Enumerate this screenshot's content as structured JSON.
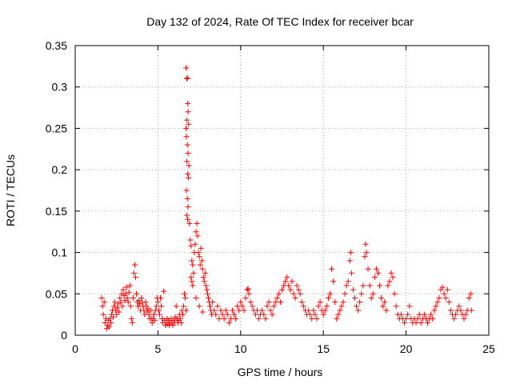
{
  "chart_data": {
    "type": "scatter",
    "title": "Day 132 of 2024, Rate Of TEC Index for receiver bcar",
    "xlabel": "GPS time / hours",
    "ylabel": "ROTI / TECUs",
    "xlim": [
      0,
      25
    ],
    "ylim": [
      0,
      0.35
    ],
    "xticks": [
      0,
      5,
      10,
      15,
      20,
      25
    ],
    "xtick_labels": [
      "0",
      "5",
      "10",
      "15",
      "20",
      "25"
    ],
    "yticks": [
      0,
      0.05,
      0.1,
      0.15,
      0.2,
      0.25,
      0.3,
      0.35
    ],
    "ytick_labels": [
      "0",
      "0.05",
      "0.1",
      "0.15",
      "0.2",
      "0.25",
      "0.3",
      "0.35"
    ],
    "grid": true,
    "marker": "plus",
    "color": "#ff0000",
    "points": [
      [
        1.6,
        0.045
      ],
      [
        1.65,
        0.035
      ],
      [
        1.7,
        0.025
      ],
      [
        1.75,
        0.04
      ],
      [
        1.8,
        0.015
      ],
      [
        1.85,
        0.02
      ],
      [
        1.9,
        0.008
      ],
      [
        1.95,
        0.012
      ],
      [
        2.0,
        0.018
      ],
      [
        2.05,
        0.01
      ],
      [
        2.1,
        0.02
      ],
      [
        2.15,
        0.015
      ],
      [
        2.2,
        0.025
      ],
      [
        2.25,
        0.03
      ],
      [
        2.3,
        0.022
      ],
      [
        2.35,
        0.035
      ],
      [
        2.4,
        0.04
      ],
      [
        2.45,
        0.03
      ],
      [
        2.5,
        0.025
      ],
      [
        2.55,
        0.033
      ],
      [
        2.6,
        0.038
      ],
      [
        2.65,
        0.028
      ],
      [
        2.7,
        0.045
      ],
      [
        2.75,
        0.04
      ],
      [
        2.8,
        0.05
      ],
      [
        2.85,
        0.035
      ],
      [
        2.9,
        0.055
      ],
      [
        2.95,
        0.048
      ],
      [
        3.0,
        0.042
      ],
      [
        3.05,
        0.05
      ],
      [
        3.1,
        0.058
      ],
      [
        3.15,
        0.045
      ],
      [
        3.2,
        0.04
      ],
      [
        3.25,
        0.052
      ],
      [
        3.3,
        0.06
      ],
      [
        3.35,
        0.035
      ],
      [
        3.4,
        0.02
      ],
      [
        3.45,
        0.015
      ],
      [
        3.5,
        0.045
      ],
      [
        3.55,
        0.075
      ],
      [
        3.6,
        0.085
      ],
      [
        3.65,
        0.07
      ],
      [
        3.7,
        0.05
      ],
      [
        3.75,
        0.04
      ],
      [
        3.8,
        0.035
      ],
      [
        3.85,
        0.042
      ],
      [
        3.9,
        0.038
      ],
      [
        3.95,
        0.03
      ],
      [
        4.0,
        0.045
      ],
      [
        4.05,
        0.04
      ],
      [
        4.1,
        0.035
      ],
      [
        4.15,
        0.03
      ],
      [
        4.2,
        0.025
      ],
      [
        4.25,
        0.04
      ],
      [
        4.3,
        0.035
      ],
      [
        4.35,
        0.028
      ],
      [
        4.4,
        0.032
      ],
      [
        4.45,
        0.025
      ],
      [
        4.5,
        0.02
      ],
      [
        4.55,
        0.03
      ],
      [
        4.6,
        0.02
      ],
      [
        4.65,
        0.015
      ],
      [
        4.7,
        0.02
      ],
      [
        4.75,
        0.025
      ],
      [
        4.8,
        0.018
      ],
      [
        4.85,
        0.03
      ],
      [
        4.9,
        0.035
      ],
      [
        4.95,
        0.045
      ],
      [
        5.0,
        0.04
      ],
      [
        5.05,
        0.03
      ],
      [
        5.1,
        0.025
      ],
      [
        5.15,
        0.045
      ],
      [
        5.2,
        0.035
      ],
      [
        5.25,
        0.02
      ],
      [
        5.3,
        0.015
      ],
      [
        5.35,
        0.053
      ],
      [
        5.4,
        0.018
      ],
      [
        5.45,
        0.012
      ],
      [
        5.5,
        0.015
      ],
      [
        5.55,
        0.02
      ],
      [
        5.6,
        0.013
      ],
      [
        5.65,
        0.018
      ],
      [
        5.7,
        0.012
      ],
      [
        5.75,
        0.015
      ],
      [
        5.8,
        0.02
      ],
      [
        5.85,
        0.015
      ],
      [
        5.9,
        0.012
      ],
      [
        5.95,
        0.018
      ],
      [
        6.0,
        0.015
      ],
      [
        6.05,
        0.022
      ],
      [
        6.1,
        0.035
      ],
      [
        6.15,
        0.02
      ],
      [
        6.2,
        0.015
      ],
      [
        6.25,
        0.018
      ],
      [
        6.3,
        0.025
      ],
      [
        6.35,
        0.02
      ],
      [
        6.4,
        0.015
      ],
      [
        6.45,
        0.03
      ],
      [
        6.5,
        0.025
      ],
      [
        6.55,
        0.035
      ],
      [
        6.6,
        0.05
      ],
      [
        6.65,
        0.045
      ],
      [
        6.7,
        0.03
      ],
      [
        6.7,
        0.323
      ],
      [
        6.75,
        0.31
      ],
      [
        6.78,
        0.311
      ],
      [
        6.7,
        0.25
      ],
      [
        6.75,
        0.26
      ],
      [
        6.8,
        0.28
      ],
      [
        6.82,
        0.27
      ],
      [
        6.85,
        0.255
      ],
      [
        6.72,
        0.24
      ],
      [
        6.78,
        0.23
      ],
      [
        6.82,
        0.22
      ],
      [
        6.87,
        0.205
      ],
      [
        6.75,
        0.21
      ],
      [
        6.8,
        0.195
      ],
      [
        6.85,
        0.19
      ],
      [
        6.72,
        0.175
      ],
      [
        6.78,
        0.165
      ],
      [
        6.82,
        0.155
      ],
      [
        6.75,
        0.145
      ],
      [
        6.8,
        0.14
      ],
      [
        6.9,
        0.135
      ],
      [
        6.95,
        0.115
      ],
      [
        7.0,
        0.108
      ],
      [
        7.05,
        0.09
      ],
      [
        7.1,
        0.085
      ],
      [
        7.15,
        0.075
      ],
      [
        7.0,
        0.07
      ],
      [
        7.05,
        0.065
      ],
      [
        7.1,
        0.06
      ],
      [
        7.2,
        0.1
      ],
      [
        7.25,
        0.11
      ],
      [
        7.3,
        0.125
      ],
      [
        7.35,
        0.135
      ],
      [
        7.4,
        0.12
      ],
      [
        7.45,
        0.1
      ],
      [
        7.5,
        0.095
      ],
      [
        7.55,
        0.085
      ],
      [
        7.6,
        0.105
      ],
      [
        7.65,
        0.09
      ],
      [
        7.7,
        0.08
      ],
      [
        7.75,
        0.07
      ],
      [
        7.8,
        0.065
      ],
      [
        7.85,
        0.075
      ],
      [
        7.9,
        0.06
      ],
      [
        7.95,
        0.055
      ],
      [
        8.0,
        0.05
      ],
      [
        8.05,
        0.045
      ],
      [
        8.1,
        0.04
      ],
      [
        8.15,
        0.035
      ],
      [
        8.2,
        0.03
      ],
      [
        8.25,
        0.025
      ],
      [
        7.3,
        0.045
      ],
      [
        7.5,
        0.035
      ],
      [
        7.7,
        0.028
      ],
      [
        8.3,
        0.04
      ],
      [
        8.4,
        0.03
      ],
      [
        8.5,
        0.025
      ],
      [
        8.6,
        0.035
      ],
      [
        8.7,
        0.02
      ],
      [
        8.8,
        0.03
      ],
      [
        8.9,
        0.025
      ],
      [
        9.0,
        0.02
      ],
      [
        9.1,
        0.03
      ],
      [
        9.2,
        0.025
      ],
      [
        9.3,
        0.015
      ],
      [
        9.4,
        0.02
      ],
      [
        9.5,
        0.03
      ],
      [
        9.6,
        0.025
      ],
      [
        9.7,
        0.02
      ],
      [
        9.8,
        0.035
      ],
      [
        9.9,
        0.03
      ],
      [
        10.0,
        0.04
      ],
      [
        10.1,
        0.035
      ],
      [
        10.2,
        0.03
      ],
      [
        10.3,
        0.045
      ],
      [
        10.4,
        0.055
      ],
      [
        10.45,
        0.056
      ],
      [
        10.5,
        0.05
      ],
      [
        10.6,
        0.04
      ],
      [
        10.7,
        0.035
      ],
      [
        10.8,
        0.03
      ],
      [
        10.9,
        0.025
      ],
      [
        11.0,
        0.03
      ],
      [
        11.1,
        0.02
      ],
      [
        11.2,
        0.025
      ],
      [
        11.3,
        0.03
      ],
      [
        11.4,
        0.025
      ],
      [
        11.5,
        0.02
      ],
      [
        11.6,
        0.035
      ],
      [
        11.7,
        0.04
      ],
      [
        11.8,
        0.03
      ],
      [
        11.9,
        0.025
      ],
      [
        12.0,
        0.035
      ],
      [
        12.1,
        0.04
      ],
      [
        12.2,
        0.045
      ],
      [
        12.3,
        0.05
      ],
      [
        12.4,
        0.04
      ],
      [
        12.5,
        0.055
      ],
      [
        12.6,
        0.06
      ],
      [
        12.7,
        0.065
      ],
      [
        12.8,
        0.07
      ],
      [
        12.9,
        0.06
      ],
      [
        13.0,
        0.055
      ],
      [
        13.1,
        0.065
      ],
      [
        13.2,
        0.05
      ],
      [
        13.3,
        0.045
      ],
      [
        13.4,
        0.06
      ],
      [
        13.5,
        0.055
      ],
      [
        13.6,
        0.05
      ],
      [
        13.7,
        0.04
      ],
      [
        13.8,
        0.035
      ],
      [
        13.9,
        0.03
      ],
      [
        14.0,
        0.025
      ],
      [
        14.1,
        0.03
      ],
      [
        14.2,
        0.025
      ],
      [
        14.3,
        0.02
      ],
      [
        14.4,
        0.03
      ],
      [
        14.5,
        0.025
      ],
      [
        14.6,
        0.02
      ],
      [
        14.7,
        0.035
      ],
      [
        14.8,
        0.04
      ],
      [
        14.9,
        0.03
      ],
      [
        15.0,
        0.025
      ],
      [
        15.1,
        0.03
      ],
      [
        15.2,
        0.035
      ],
      [
        15.3,
        0.045
      ],
      [
        15.4,
        0.05
      ],
      [
        15.5,
        0.08
      ],
      [
        15.6,
        0.065
      ],
      [
        15.7,
        0.04
      ],
      [
        15.8,
        0.02
      ],
      [
        15.9,
        0.025
      ],
      [
        16.0,
        0.03
      ],
      [
        16.1,
        0.035
      ],
      [
        16.2,
        0.04
      ],
      [
        16.3,
        0.05
      ],
      [
        16.4,
        0.06
      ],
      [
        16.5,
        0.065
      ],
      [
        16.6,
        0.09
      ],
      [
        16.65,
        0.1
      ],
      [
        16.7,
        0.075
      ],
      [
        16.8,
        0.055
      ],
      [
        16.9,
        0.045
      ],
      [
        17.0,
        0.035
      ],
      [
        17.1,
        0.03
      ],
      [
        17.2,
        0.04
      ],
      [
        17.3,
        0.05
      ],
      [
        17.4,
        0.06
      ],
      [
        17.5,
        0.095
      ],
      [
        17.55,
        0.11
      ],
      [
        17.6,
        0.1
      ],
      [
        17.7,
        0.08
      ],
      [
        17.8,
        0.06
      ],
      [
        17.9,
        0.045
      ],
      [
        18.0,
        0.05
      ],
      [
        18.1,
        0.07
      ],
      [
        18.2,
        0.08
      ],
      [
        18.3,
        0.075
      ],
      [
        18.4,
        0.06
      ],
      [
        18.5,
        0.045
      ],
      [
        18.6,
        0.035
      ],
      [
        18.7,
        0.04
      ],
      [
        18.8,
        0.03
      ],
      [
        18.9,
        0.06
      ],
      [
        19.0,
        0.065
      ],
      [
        19.1,
        0.075
      ],
      [
        19.2,
        0.07
      ],
      [
        19.3,
        0.05
      ],
      [
        19.4,
        0.035
      ],
      [
        19.5,
        0.025
      ],
      [
        19.6,
        0.02
      ],
      [
        19.7,
        0.025
      ],
      [
        19.8,
        0.02
      ],
      [
        19.9,
        0.015
      ],
      [
        20.0,
        0.02
      ],
      [
        20.1,
        0.025
      ],
      [
        20.2,
        0.035
      ],
      [
        20.3,
        0.02
      ],
      [
        20.4,
        0.015
      ],
      [
        20.5,
        0.02
      ],
      [
        20.6,
        0.015
      ],
      [
        20.7,
        0.02
      ],
      [
        20.8,
        0.025
      ],
      [
        20.9,
        0.015
      ],
      [
        21.0,
        0.02
      ],
      [
        21.1,
        0.025
      ],
      [
        21.2,
        0.02
      ],
      [
        21.3,
        0.015
      ],
      [
        21.4,
        0.02
      ],
      [
        21.5,
        0.025
      ],
      [
        21.6,
        0.02
      ],
      [
        21.7,
        0.03
      ],
      [
        21.8,
        0.035
      ],
      [
        21.9,
        0.04
      ],
      [
        22.0,
        0.045
      ],
      [
        22.1,
        0.055
      ],
      [
        22.2,
        0.058
      ],
      [
        22.3,
        0.05
      ],
      [
        22.4,
        0.045
      ],
      [
        22.5,
        0.055
      ],
      [
        22.6,
        0.04
      ],
      [
        22.7,
        0.03
      ],
      [
        22.8,
        0.025
      ],
      [
        22.9,
        0.02
      ],
      [
        23.0,
        0.025
      ],
      [
        23.1,
        0.03
      ],
      [
        23.2,
        0.035
      ],
      [
        23.3,
        0.03
      ],
      [
        23.4,
        0.025
      ],
      [
        23.5,
        0.02
      ],
      [
        23.6,
        0.025
      ],
      [
        23.7,
        0.03
      ],
      [
        23.8,
        0.045
      ],
      [
        23.9,
        0.05
      ],
      [
        23.95,
        0.03
      ]
    ]
  }
}
